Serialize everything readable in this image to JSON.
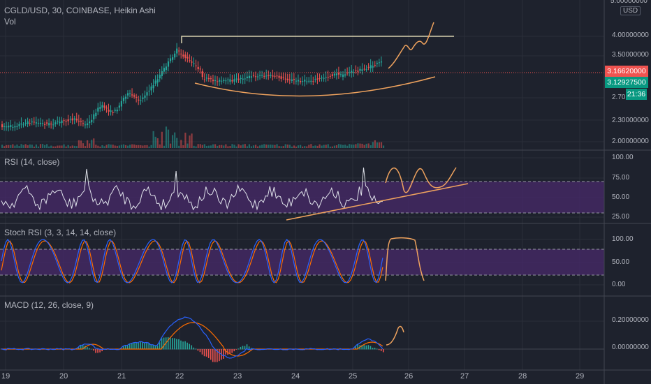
{
  "header": {
    "symbol_line": "CGLD/USD, 30, COINBASE, Heikin Ashi",
    "volume_label": "Vol",
    "currency_label": "USD"
  },
  "colors": {
    "background": "#1e222d",
    "up": "#26a69a",
    "down": "#ef5350",
    "rsi_line": "#e0e3eb",
    "rsi_band": "#4a2a6e",
    "stoch_k": "#2962ff",
    "stoch_d": "#ff6d00",
    "drawing": "#f0a35e",
    "resistance": "#d9d2b0",
    "last_price_badge": "#ef5350",
    "current_badge": "#26a69a"
  },
  "price_pane": {
    "axis_labels": [
      "4.00000000",
      "3.50000000",
      "2.70",
      "2.30000000",
      "2.00000000"
    ],
    "last_price": "3.16620000",
    "current_price": "3.12927500",
    "countdown": "21:36"
  },
  "rsi_pane": {
    "title": "RSI (14, close)",
    "axis_labels": [
      "100.00",
      "75.00",
      "50.00",
      "25.00"
    ]
  },
  "stoch_pane": {
    "title": "Stoch RSI (3, 3, 14, 14, close)",
    "axis_labels": [
      "100.00",
      "50.00",
      "0.00"
    ]
  },
  "macd_pane": {
    "title": "MACD (12, 26, close, 9)",
    "axis_labels": [
      "0.20000000",
      "0.00000000"
    ]
  },
  "time_axis": {
    "labels": [
      "19",
      "20",
      "21",
      "22",
      "23",
      "24",
      "25",
      "26",
      "27",
      "28",
      "29"
    ]
  }
}
